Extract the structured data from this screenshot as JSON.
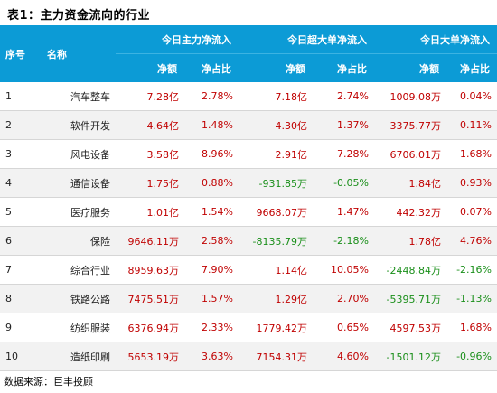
{
  "title": "表1：主力资金流向的行业",
  "headers": {
    "seq": "序号",
    "name": "名称",
    "groups": [
      "今日主力净流入",
      "今日超大单净流入",
      "今日大单净流入"
    ],
    "sub": [
      "净额",
      "净占比",
      "净额",
      "净占比",
      "净额",
      "净占比"
    ]
  },
  "rows": [
    {
      "seq": "1",
      "name": "汽车整车",
      "v": [
        "7.28亿",
        "2.78%",
        "7.18亿",
        "2.74%",
        "1009.08万",
        "0.04%"
      ]
    },
    {
      "seq": "2",
      "name": "软件开发",
      "v": [
        "4.64亿",
        "1.48%",
        "4.30亿",
        "1.37%",
        "3375.77万",
        "0.11%"
      ]
    },
    {
      "seq": "3",
      "name": "风电设备",
      "v": [
        "3.58亿",
        "8.96%",
        "2.91亿",
        "7.28%",
        "6706.01万",
        "1.68%"
      ]
    },
    {
      "seq": "4",
      "name": "通信设备",
      "v": [
        "1.75亿",
        "0.88%",
        "-931.85万",
        "-0.05%",
        "1.84亿",
        "0.93%"
      ]
    },
    {
      "seq": "5",
      "name": "医疗服务",
      "v": [
        "1.01亿",
        "1.54%",
        "9668.07万",
        "1.47%",
        "442.32万",
        "0.07%"
      ]
    },
    {
      "seq": "6",
      "name": "保险",
      "v": [
        "9646.11万",
        "2.58%",
        "-8135.79万",
        "-2.18%",
        "1.78亿",
        "4.76%"
      ]
    },
    {
      "seq": "7",
      "name": "综合行业",
      "v": [
        "8959.63万",
        "7.90%",
        "1.14亿",
        "10.05%",
        "-2448.84万",
        "-2.16%"
      ]
    },
    {
      "seq": "8",
      "name": "铁路公路",
      "v": [
        "7475.51万",
        "1.57%",
        "1.29亿",
        "2.70%",
        "-5395.71万",
        "-1.13%"
      ]
    },
    {
      "seq": "9",
      "name": "纺织服装",
      "v": [
        "6376.94万",
        "2.33%",
        "1779.42万",
        "0.65%",
        "4597.53万",
        "1.68%"
      ]
    },
    {
      "seq": "10",
      "name": "造纸印刷",
      "v": [
        "5653.19万",
        "3.63%",
        "7154.31万",
        "4.60%",
        "-1501.12万",
        "-0.96%"
      ]
    }
  ],
  "source": "数据来源：巨丰投顾",
  "colors": {
    "header_bg": "#0c9bd6",
    "positive": "#c00000",
    "negative": "#1a8f1a"
  }
}
